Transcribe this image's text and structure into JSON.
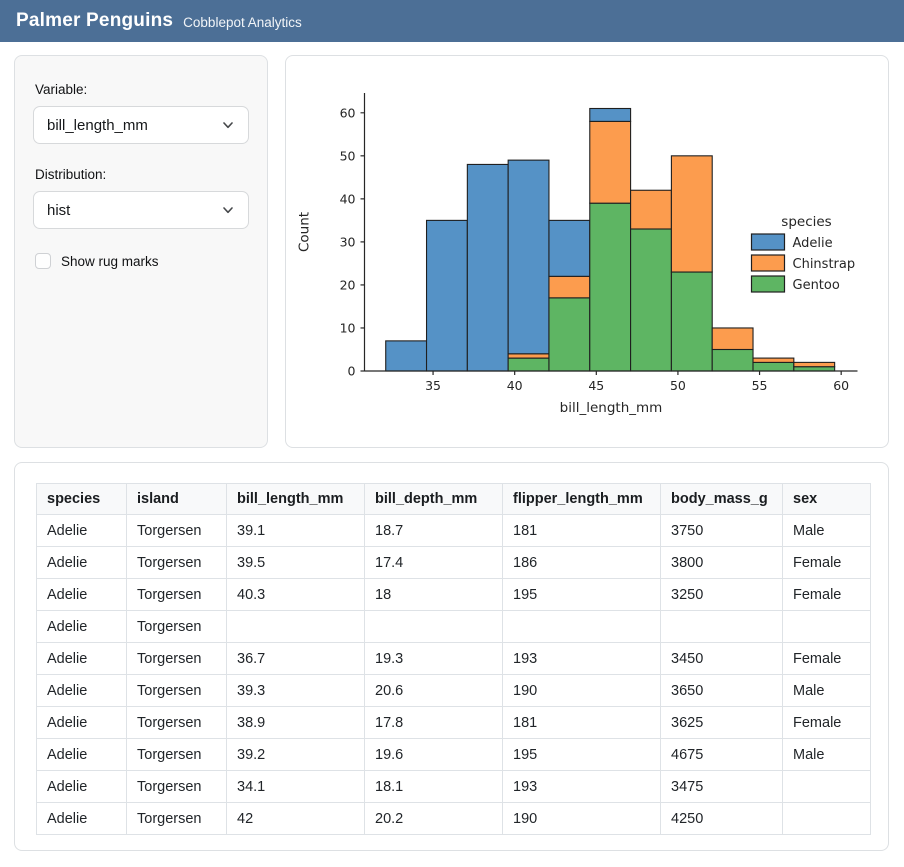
{
  "header": {
    "title": "Palmer Penguins",
    "subtitle": "Cobblepot Analytics",
    "bg_color": "#4c6f96"
  },
  "sidebar": {
    "variable_label": "Variable:",
    "variable_value": "bill_length_mm",
    "variable_icon": "chevron-down",
    "distribution_label": "Distribution:",
    "distribution_value": "hist",
    "distribution_icon": "chevron-down",
    "rug_label": "Show rug marks",
    "rug_checked": false
  },
  "chart_data": {
    "type": "bar",
    "subtype": "stacked-histogram",
    "title": "",
    "xlabel": "bill_length_mm",
    "ylabel": "Count",
    "bin_edges": [
      32.1,
      34.6,
      37.1,
      39.6,
      42.1,
      44.6,
      47.1,
      49.6,
      52.1,
      54.6,
      57.1,
      59.6
    ],
    "series": [
      {
        "name": "Adelie",
        "color": "#5592c6",
        "values": [
          7,
          35,
          48,
          45,
          13,
          3,
          0,
          0,
          0,
          0,
          0
        ]
      },
      {
        "name": "Chinstrap",
        "color": "#fc9c4e",
        "values": [
          0,
          0,
          0,
          1,
          5,
          19,
          9,
          27,
          5,
          1,
          1
        ]
      },
      {
        "name": "Gentoo",
        "color": "#5eb563",
        "values": [
          0,
          0,
          0,
          3,
          17,
          39,
          33,
          23,
          5,
          2,
          1
        ]
      }
    ],
    "stack_order_bottom_to_top": [
      "Gentoo",
      "Chinstrap",
      "Adelie"
    ],
    "bar_totals": [
      7,
      35,
      48,
      49,
      35,
      61,
      42,
      50,
      10,
      3,
      2
    ],
    "legend_title": "species",
    "legend_position": "center right",
    "xlim": [
      30.8,
      61.0
    ],
    "ylim": [
      0,
      64.6
    ],
    "xticks": [
      35,
      40,
      45,
      50,
      55,
      60
    ],
    "yticks": [
      0,
      10,
      20,
      30,
      40,
      50,
      60
    ],
    "bar_edge_color": "#1f1f1f",
    "axis_color": "#262626",
    "grid": false
  },
  "table": {
    "columns": [
      "species",
      "island",
      "bill_length_mm",
      "bill_depth_mm",
      "flipper_length_mm",
      "body_mass_g",
      "sex"
    ],
    "rows": [
      [
        "Adelie",
        "Torgersen",
        "39.1",
        "18.7",
        "181",
        "3750",
        "Male"
      ],
      [
        "Adelie",
        "Torgersen",
        "39.5",
        "17.4",
        "186",
        "3800",
        "Female"
      ],
      [
        "Adelie",
        "Torgersen",
        "40.3",
        "18",
        "195",
        "3250",
        "Female"
      ],
      [
        "Adelie",
        "Torgersen",
        "",
        "",
        "",
        "",
        ""
      ],
      [
        "Adelie",
        "Torgersen",
        "36.7",
        "19.3",
        "193",
        "3450",
        "Female"
      ],
      [
        "Adelie",
        "Torgersen",
        "39.3",
        "20.6",
        "190",
        "3650",
        "Male"
      ],
      [
        "Adelie",
        "Torgersen",
        "38.9",
        "17.8",
        "181",
        "3625",
        "Female"
      ],
      [
        "Adelie",
        "Torgersen",
        "39.2",
        "19.6",
        "195",
        "4675",
        "Male"
      ],
      [
        "Adelie",
        "Torgersen",
        "34.1",
        "18.1",
        "193",
        "3475",
        ""
      ],
      [
        "Adelie",
        "Torgersen",
        "42",
        "20.2",
        "190",
        "4250",
        ""
      ]
    ]
  }
}
